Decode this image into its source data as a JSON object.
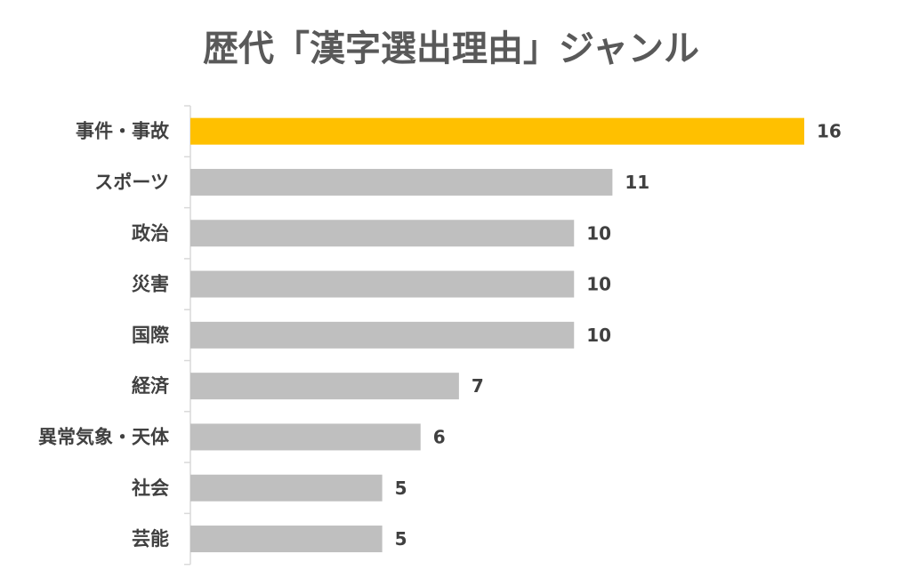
{
  "chart_data": {
    "type": "bar",
    "orientation": "horizontal",
    "title": "歴代「漢字選出理由」ジャンル",
    "categories": [
      "事件・事故",
      "スポーツ",
      "政治",
      "災害",
      "国際",
      "経済",
      "異常気象・天体",
      "社会",
      "芸能"
    ],
    "values": [
      16,
      11,
      10,
      10,
      10,
      7,
      6,
      5,
      5
    ],
    "xlim": [
      0,
      16
    ],
    "grid": false,
    "legend": "none",
    "highlight_index": 0,
    "colors": {
      "highlight": "#FFC000",
      "default": "#BFBFBF",
      "axis": "#D9D9D9",
      "title": "#595959",
      "label": "#404040"
    }
  }
}
